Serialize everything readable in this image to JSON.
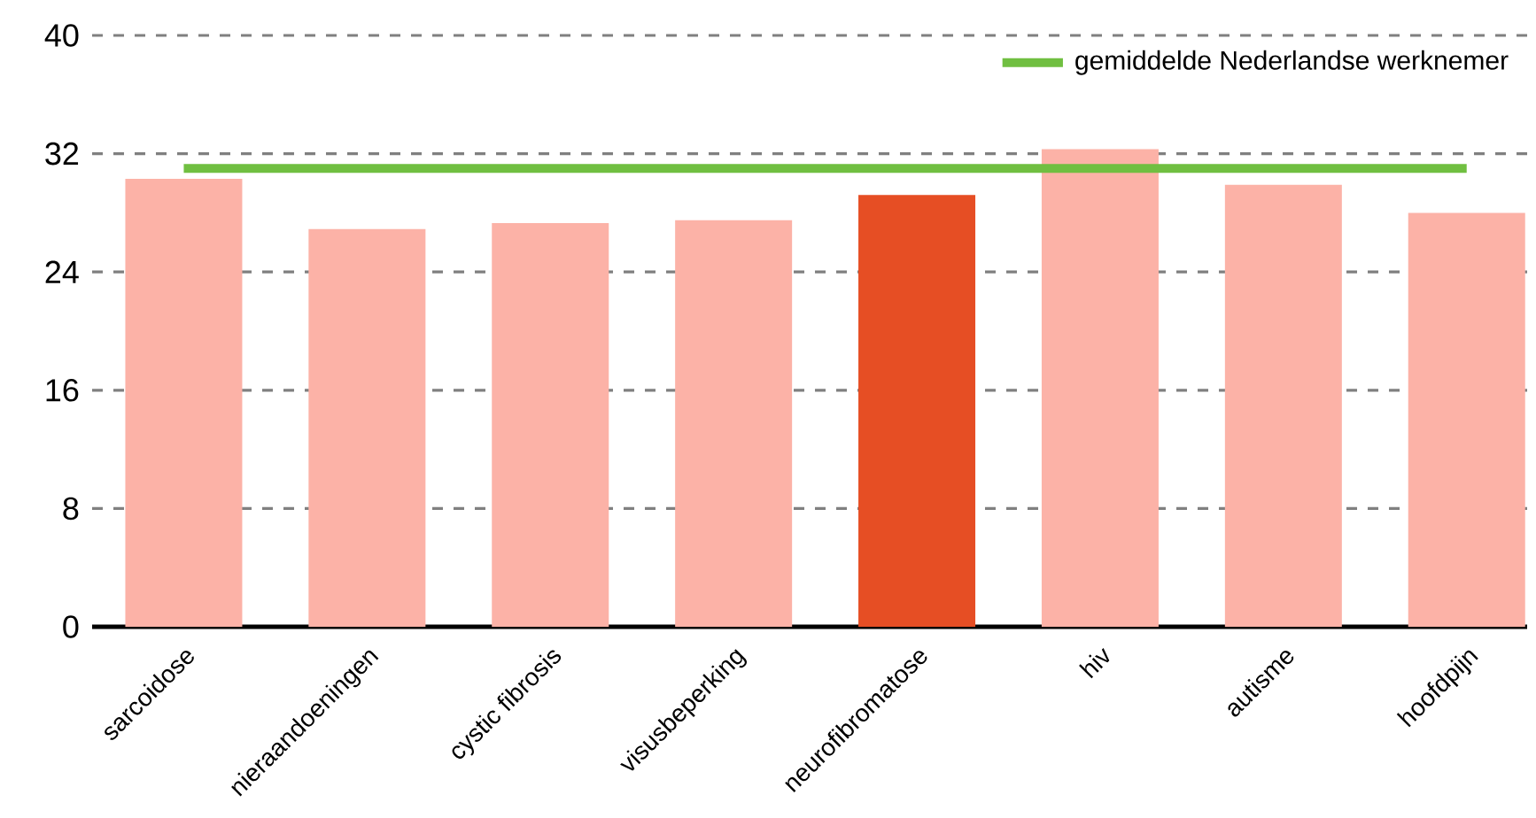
{
  "chart_data": {
    "type": "bar",
    "categories": [
      "sarcoidose",
      "nieraandoeningen",
      "cystic fibrosis",
      "visusbeperking",
      "neurofibromatose",
      "hiv",
      "autisme",
      "hoofdpijn"
    ],
    "values": [
      30.3,
      26.9,
      27.3,
      27.5,
      29.2,
      32.3,
      29.9,
      28.0
    ],
    "colors": [
      "#fcb2a7",
      "#fcb2a7",
      "#fcb2a7",
      "#fcb2a7",
      "#e64e24",
      "#fcb2a7",
      "#fcb2a7",
      "#fcb2a7"
    ],
    "ylim": [
      0,
      40
    ],
    "yticks": [
      0,
      8,
      16,
      24,
      32,
      40
    ],
    "grid": "y",
    "legend": "top right",
    "ref_lines": [
      {
        "axis": "y",
        "value": 31.0,
        "label": "gemiddelde Nederlandse werknemer",
        "color": "#70bf41"
      }
    ]
  }
}
